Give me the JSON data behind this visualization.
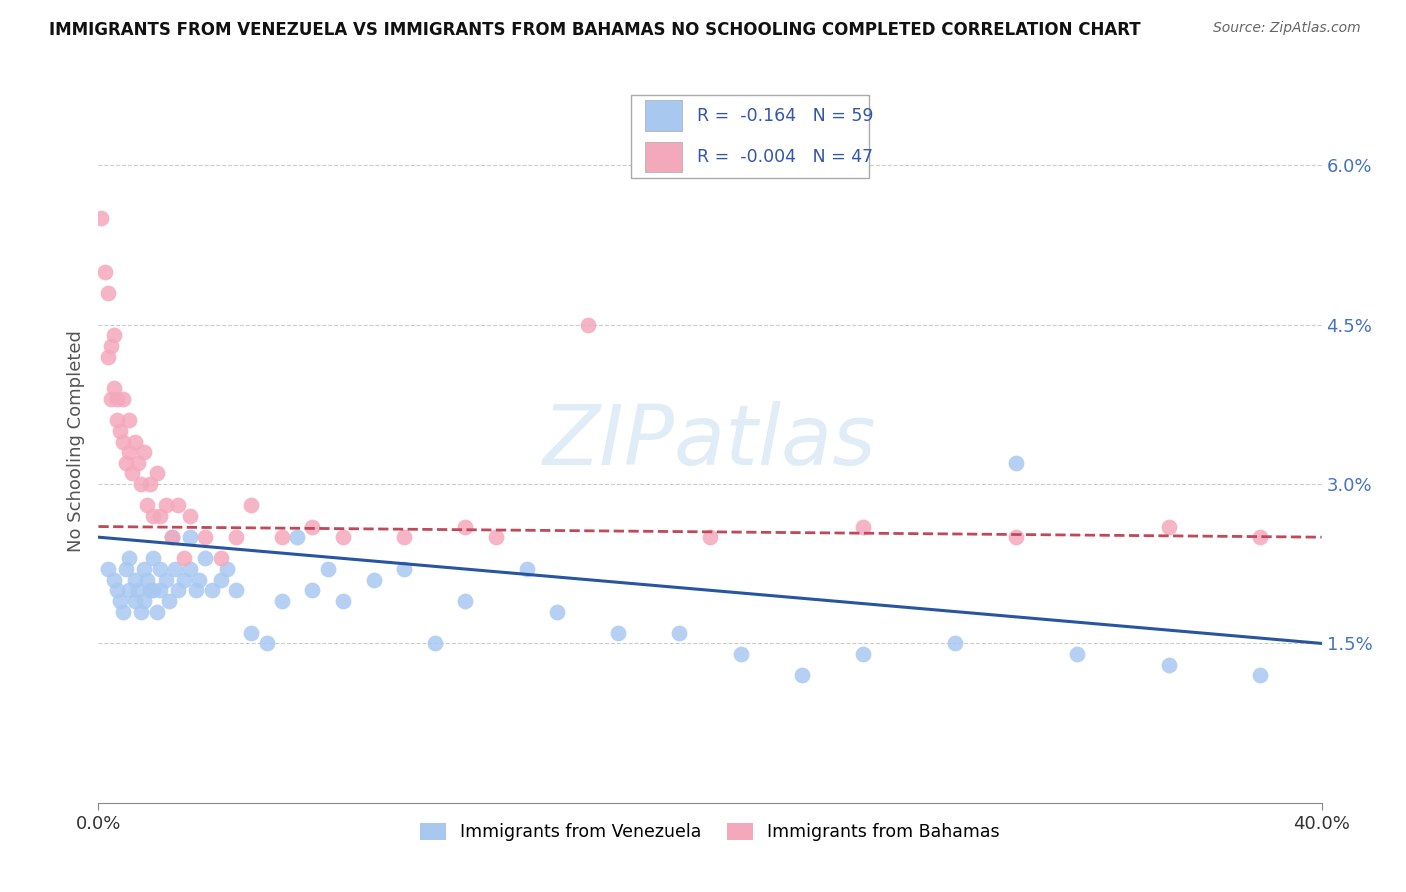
{
  "title": "IMMIGRANTS FROM VENEZUELA VS IMMIGRANTS FROM BAHAMAS NO SCHOOLING COMPLETED CORRELATION CHART",
  "source": "Source: ZipAtlas.com",
  "ylabel": "No Schooling Completed",
  "r_venezuela": -0.164,
  "n_venezuela": 59,
  "r_bahamas": -0.004,
  "n_bahamas": 47,
  "xlim": [
    0.0,
    0.4
  ],
  "ylim": [
    0.0,
    0.068
  ],
  "yticks": [
    0.015,
    0.03,
    0.045,
    0.06
  ],
  "ytick_labels": [
    "1.5%",
    "3.0%",
    "4.5%",
    "6.0%"
  ],
  "xticks": [
    0.0,
    0.4
  ],
  "xtick_labels": [
    "0.0%",
    "40.0%"
  ],
  "color_venezuela": "#a8c8f0",
  "color_bahamas": "#f4a8bc",
  "trendline_venezuela": "#2855a0",
  "trendline_bahamas": "#c04858",
  "background_color": "#ffffff",
  "watermark": "ZIPatlas",
  "venezuela_x": [
    0.003,
    0.005,
    0.006,
    0.007,
    0.008,
    0.009,
    0.01,
    0.01,
    0.012,
    0.012,
    0.013,
    0.014,
    0.015,
    0.015,
    0.016,
    0.017,
    0.018,
    0.018,
    0.019,
    0.02,
    0.02,
    0.022,
    0.023,
    0.024,
    0.025,
    0.026,
    0.028,
    0.03,
    0.03,
    0.032,
    0.033,
    0.035,
    0.037,
    0.04,
    0.042,
    0.045,
    0.05,
    0.055,
    0.06,
    0.065,
    0.07,
    0.075,
    0.08,
    0.09,
    0.1,
    0.11,
    0.12,
    0.14,
    0.15,
    0.17,
    0.19,
    0.21,
    0.23,
    0.25,
    0.28,
    0.32,
    0.35,
    0.38,
    0.3
  ],
  "venezuela_y": [
    0.022,
    0.021,
    0.02,
    0.019,
    0.018,
    0.022,
    0.023,
    0.02,
    0.021,
    0.019,
    0.02,
    0.018,
    0.022,
    0.019,
    0.021,
    0.02,
    0.02,
    0.023,
    0.018,
    0.022,
    0.02,
    0.021,
    0.019,
    0.025,
    0.022,
    0.02,
    0.021,
    0.025,
    0.022,
    0.02,
    0.021,
    0.023,
    0.02,
    0.021,
    0.022,
    0.02,
    0.016,
    0.015,
    0.019,
    0.025,
    0.02,
    0.022,
    0.019,
    0.021,
    0.022,
    0.015,
    0.019,
    0.022,
    0.018,
    0.016,
    0.016,
    0.014,
    0.012,
    0.014,
    0.015,
    0.014,
    0.013,
    0.012,
    0.032
  ],
  "bahamas_x": [
    0.001,
    0.002,
    0.003,
    0.003,
    0.004,
    0.004,
    0.005,
    0.005,
    0.006,
    0.006,
    0.007,
    0.008,
    0.008,
    0.009,
    0.01,
    0.01,
    0.011,
    0.012,
    0.013,
    0.014,
    0.015,
    0.016,
    0.017,
    0.018,
    0.019,
    0.02,
    0.022,
    0.024,
    0.026,
    0.028,
    0.03,
    0.035,
    0.04,
    0.045,
    0.05,
    0.06,
    0.07,
    0.08,
    0.1,
    0.12,
    0.16,
    0.2,
    0.25,
    0.3,
    0.35,
    0.38,
    0.13
  ],
  "bahamas_y": [
    0.055,
    0.05,
    0.048,
    0.042,
    0.043,
    0.038,
    0.044,
    0.039,
    0.038,
    0.036,
    0.035,
    0.034,
    0.038,
    0.032,
    0.036,
    0.033,
    0.031,
    0.034,
    0.032,
    0.03,
    0.033,
    0.028,
    0.03,
    0.027,
    0.031,
    0.027,
    0.028,
    0.025,
    0.028,
    0.023,
    0.027,
    0.025,
    0.023,
    0.025,
    0.028,
    0.025,
    0.026,
    0.025,
    0.025,
    0.026,
    0.045,
    0.025,
    0.026,
    0.025,
    0.026,
    0.025,
    0.025
  ],
  "trendline_ven_y0": 0.025,
  "trendline_ven_y1": 0.015,
  "trendline_bah_y0": 0.026,
  "trendline_bah_y1": 0.025
}
